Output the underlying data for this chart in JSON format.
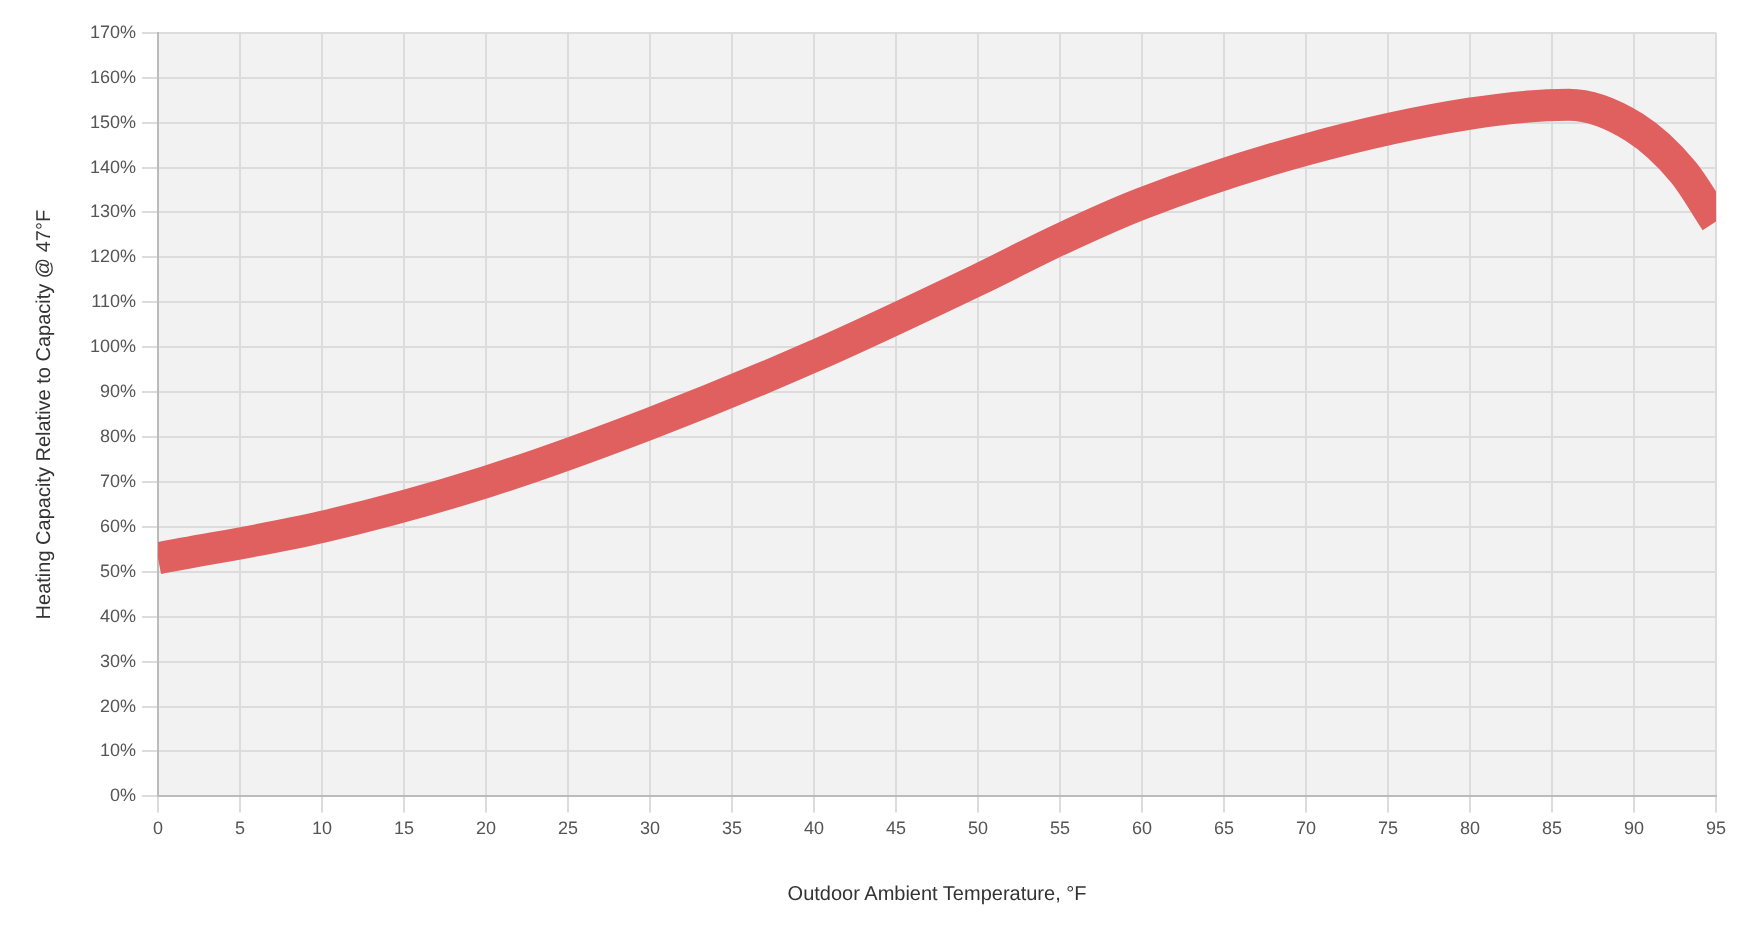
{
  "chart_data": {
    "type": "line",
    "xlabel": "Outdoor Ambient Temperature, °F",
    "ylabel": "Heating Capacity Relative to Capacity @ 47°F",
    "x": [
      0,
      10,
      20,
      30,
      40,
      50,
      55,
      60,
      70,
      80,
      86,
      90,
      93,
      95
    ],
    "series": [
      {
        "color": "#e06060",
        "values": [
          53,
          60,
          70,
          83,
          98,
          115,
          124,
          132,
          144,
          152,
          154,
          149,
          139,
          128
        ]
      }
    ],
    "xlim": [
      0,
      95
    ],
    "xticks": [
      0,
      5,
      10,
      15,
      20,
      25,
      30,
      35,
      40,
      45,
      50,
      55,
      60,
      65,
      70,
      75,
      80,
      85,
      90,
      95
    ],
    "ylim": [
      0,
      170
    ],
    "yticks": [
      {
        "value": 0,
        "label": "0%"
      },
      {
        "value": 10,
        "label": "10%"
      },
      {
        "value": 20,
        "label": "20%"
      },
      {
        "value": 30,
        "label": "30%"
      },
      {
        "value": 40,
        "label": "40%"
      },
      {
        "value": 50,
        "label": "50%"
      },
      {
        "value": 60,
        "label": "60%"
      },
      {
        "value": 70,
        "label": "70%"
      },
      {
        "value": 80,
        "label": "80%"
      },
      {
        "value": 90,
        "label": "90%"
      },
      {
        "value": 100,
        "label": "100%"
      },
      {
        "value": 110,
        "label": "110%"
      },
      {
        "value": 120,
        "label": "120%"
      },
      {
        "value": 130,
        "label": "130%"
      },
      {
        "value": 140,
        "label": "140%"
      },
      {
        "value": 150,
        "label": "150%"
      },
      {
        "value": 160,
        "label": "160%"
      },
      {
        "value": 170,
        "label": "170%"
      }
    ],
    "grid": true,
    "marker": "none",
    "line_style": "solid"
  }
}
